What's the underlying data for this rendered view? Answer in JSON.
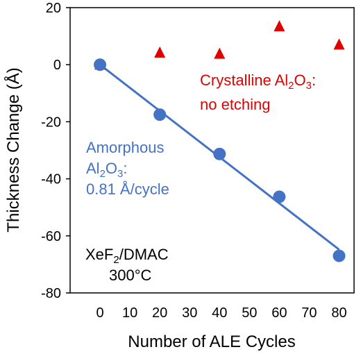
{
  "chart_data": {
    "type": "scatter",
    "xlabel": "Number of ALE Cycles",
    "ylabel": "Thickness Change (Å)",
    "xlim": [
      -10,
      85
    ],
    "ylim": [
      -80,
      20
    ],
    "x_ticks": [
      "0",
      "10",
      "20",
      "30",
      "40",
      "50",
      "60",
      "70",
      "80"
    ],
    "y_ticks": [
      "20",
      "0",
      "-20",
      "-40",
      "-60",
      "-80"
    ],
    "grid": false,
    "series": [
      {
        "marker": "triangle",
        "color": "#e00000",
        "x": [
          0,
          20,
          40,
          60,
          80
        ],
        "y": [
          0,
          4.2,
          3.8,
          13.4,
          7
        ]
      },
      {
        "marker": "circle",
        "color": "#4472c4",
        "x": [
          0,
          20,
          40,
          60,
          80
        ],
        "y": [
          0,
          -17.5,
          -31.3,
          -46.3,
          -67
        ],
        "trendline": {
          "slope": -0.81,
          "intercept": 0
        }
      }
    ],
    "annotations": {
      "crystalline_line1_main": "Crystalline Al",
      "crystalline_line1_sub": "2",
      "crystalline_line1_mid": "O",
      "crystalline_line1_sub2": "3",
      "crystalline_line1_end": ":",
      "crystalline_line2": "no etching",
      "amorphous_line1": "Amorphous",
      "amorphous_line2_main": "Al",
      "amorphous_line2_sub": "2",
      "amorphous_line2_mid": "O",
      "amorphous_line2_sub2": "3",
      "amorphous_line2_end": ":",
      "amorphous_line3": "0.81 Å/cycle",
      "condition_line1_main": "XeF",
      "condition_line1_sub": "2",
      "condition_line1_end": "/DMAC",
      "condition_line2": "300°C"
    },
    "colors": {
      "red": "#e00000",
      "blue": "#4472c4"
    }
  }
}
